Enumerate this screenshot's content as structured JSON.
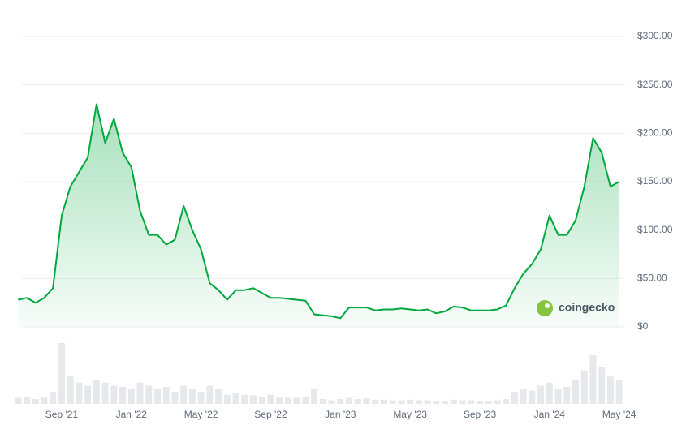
{
  "chart_data": {
    "type": "line",
    "categories": [
      null,
      null,
      null,
      null,
      null,
      "Sep '21",
      null,
      null,
      null,
      null,
      null,
      null,
      null,
      "Jan '22",
      null,
      null,
      null,
      null,
      null,
      null,
      null,
      "May '22",
      null,
      null,
      null,
      null,
      null,
      null,
      null,
      "Sep '22",
      null,
      null,
      null,
      null,
      null,
      null,
      null,
      "Jan '23",
      null,
      null,
      null,
      null,
      null,
      null,
      null,
      "May '23",
      null,
      null,
      null,
      null,
      null,
      null,
      null,
      "Sep '23",
      null,
      null,
      null,
      null,
      null,
      null,
      null,
      "Jan '24",
      null,
      null,
      null,
      null,
      null,
      null,
      null,
      "May '24"
    ],
    "values": [
      28,
      30,
      25,
      30,
      40,
      115,
      145,
      160,
      175,
      230,
      190,
      215,
      180,
      165,
      120,
      95,
      95,
      85,
      90,
      125,
      100,
      80,
      45,
      38,
      28,
      38,
      38,
      40,
      35,
      30,
      30,
      29,
      28,
      27,
      13,
      12,
      11,
      9,
      20,
      20,
      20,
      17,
      18,
      18,
      19,
      18,
      17,
      18,
      14,
      16,
      21,
      20,
      17,
      17,
      17,
      18,
      22,
      40,
      55,
      65,
      80,
      115,
      95,
      95,
      110,
      145,
      195,
      180,
      145,
      150
    ],
    "volumes": [
      10,
      12,
      8,
      10,
      20,
      100,
      45,
      35,
      30,
      40,
      35,
      30,
      28,
      25,
      35,
      30,
      25,
      28,
      20,
      30,
      25,
      20,
      30,
      25,
      15,
      18,
      15,
      14,
      12,
      15,
      12,
      10,
      10,
      12,
      25,
      8,
      6,
      8,
      10,
      8,
      9,
      7,
      7,
      6,
      6,
      7,
      6,
      6,
      5,
      5,
      7,
      6,
      6,
      5,
      5,
      6,
      8,
      20,
      25,
      22,
      30,
      35,
      25,
      28,
      40,
      55,
      80,
      60,
      45,
      40
    ],
    "color": "#00a83e",
    "ylim": [
      0,
      300
    ],
    "yticks": [
      {
        "value": 0,
        "label": "$0"
      },
      {
        "value": 50,
        "label": "$50.00"
      },
      {
        "value": 100,
        "label": "$100.00"
      },
      {
        "value": 150,
        "label": "$150.00"
      },
      {
        "value": 200,
        "label": "$200.00"
      },
      {
        "value": 250,
        "label": "$250.00"
      },
      {
        "value": 300,
        "label": "$300.00"
      }
    ],
    "grid": true,
    "watermark": "coingecko"
  }
}
